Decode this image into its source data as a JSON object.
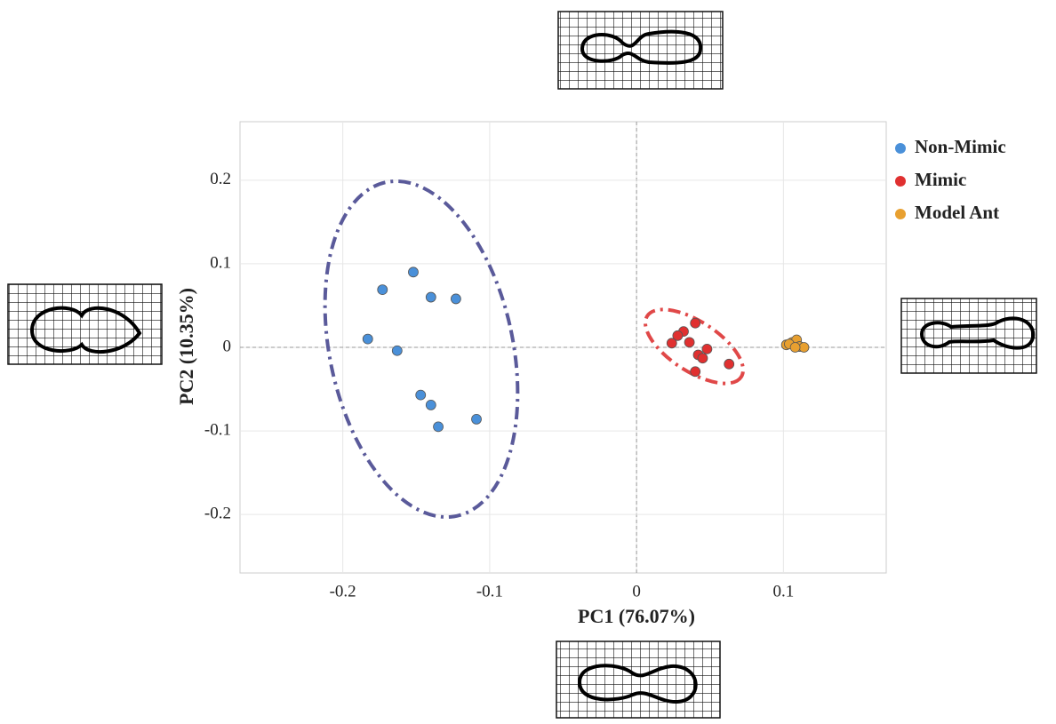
{
  "chart_data": {
    "type": "scatter",
    "x_label": "PC1 (76.07%)",
    "y_label": "PC2 (10.35%)",
    "xlim": [
      -0.27,
      0.17
    ],
    "ylim": [
      -0.27,
      0.27
    ],
    "xticks": [
      -0.2,
      -0.1,
      0,
      0.1
    ],
    "yticks": [
      -0.2,
      -0.1,
      0,
      0.1,
      0.2
    ],
    "grid": true,
    "legend": "right",
    "series": [
      {
        "name": "Non-Mimic",
        "color": "#4a90d9",
        "x": [
          -0.152,
          -0.173,
          -0.14,
          -0.123,
          -0.183,
          -0.163,
          -0.147,
          -0.14,
          -0.109,
          -0.135
        ],
        "values": [
          0.09,
          0.069,
          0.06,
          0.058,
          0.01,
          -0.004,
          -0.057,
          -0.069,
          -0.086,
          -0.095
        ]
      },
      {
        "name": "Mimic",
        "color": "#e03030",
        "x": [
          0.04,
          0.032,
          0.028,
          0.036,
          0.024,
          0.048,
          0.042,
          0.045,
          0.04,
          0.063
        ],
        "values": [
          0.029,
          0.019,
          0.014,
          0.006,
          0.005,
          -0.002,
          -0.009,
          -0.013,
          -0.029,
          -0.02
        ]
      },
      {
        "name": "Model Ant",
        "color": "#e8a030",
        "x": [
          0.102,
          0.106,
          0.109,
          0.111,
          0.114,
          0.104,
          0.108
        ],
        "values": [
          0.003,
          0.006,
          0.009,
          0.001,
          0.0,
          0.004,
          0.0
        ]
      }
    ]
  }
}
